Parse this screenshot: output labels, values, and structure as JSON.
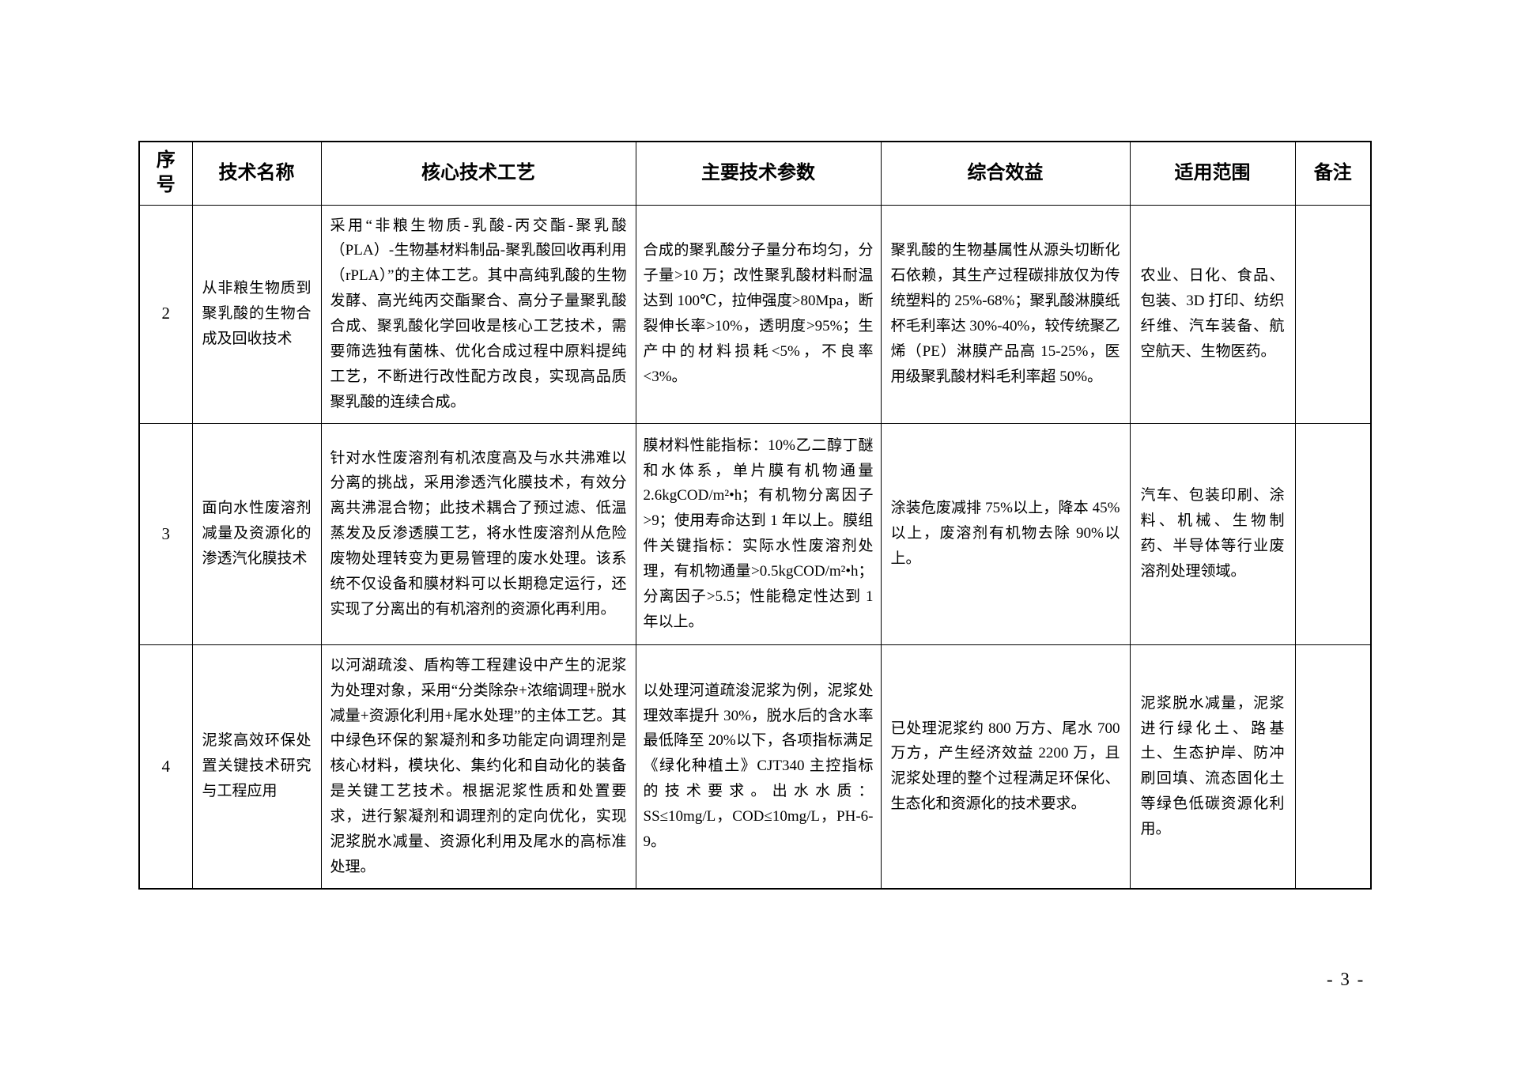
{
  "page": {
    "number_label": "- 3 -"
  },
  "table": {
    "headers": [
      "序\n号",
      "技术名称",
      "核心技术工艺",
      "主要技术参数",
      "综合效益",
      "适用范围",
      "备注"
    ],
    "rows": [
      {
        "no": "2",
        "name": "从非粮生物质到聚乳酸的生物合成及回收技术",
        "process": "采用“非粮生物质-乳酸-丙交酯-聚乳酸（PLA）-生物基材料制品-聚乳酸回收再利用（rPLA）”的主体工艺。其中高纯乳酸的生物发酵、高光纯丙交酯聚合、高分子量聚乳酸合成、聚乳酸化学回收是核心工艺技术，需要筛选独有菌株、优化合成过程中原料提纯工艺，不断进行改性配方改良，实现高品质聚乳酸的连续合成。",
        "params": "合成的聚乳酸分子量分布均匀，分子量>10 万；改性聚乳酸材料耐温达到 100℃，拉伸强度>80Mpa，断裂伸长率>10%，透明度>95%；生产中的材料损耗<5%，不良率<3%。",
        "benefits": "聚乳酸的生物基属性从源头切断化石依赖，其生产过程碳排放仅为传统塑料的 25%-68%；聚乳酸淋膜纸杯毛利率达 30%-40%，较传统聚乙烯（PE）淋膜产品高 15-25%，医用级聚乳酸材料毛利率超 50%。",
        "scope": "农业、日化、食品、包装、3D 打印、纺织纤维、汽车装备、航空航天、生物医药。",
        "remark": ""
      },
      {
        "no": "3",
        "name": "面向水性废溶剂减量及资源化的渗透汽化膜技术",
        "process": "针对水性废溶剂有机浓度高及与水共沸难以分离的挑战，采用渗透汽化膜技术，有效分离共沸混合物；此技术耦合了预过滤、低温蒸发及反渗透膜工艺，将水性废溶剂从危险废物处理转变为更易管理的废水处理。该系统不仅设备和膜材料可以长期稳定运行，还实现了分离出的有机溶剂的资源化再利用。",
        "params": "膜材料性能指标：10%乙二醇丁醚和水体系，单片膜有机物通量 2.6kgCOD/m²•h；有机物分离因子>9；使用寿命达到 1 年以上。膜组件关键指标：实际水性废溶剂处理，有机物通量>0.5kgCOD/m²•h；分离因子>5.5；性能稳定性达到 1 年以上。",
        "benefits": "涂装危废减排 75%以上，降本 45%以上，废溶剂有机物去除 90%以上。",
        "scope": "汽车、包装印刷、涂料、机械、生物制药、半导体等行业废溶剂处理领域。",
        "remark": ""
      },
      {
        "no": "4",
        "name": "泥浆高效环保处置关键技术研究与工程应用",
        "process": "以河湖疏浚、盾构等工程建设中产生的泥浆为处理对象，采用“分类除杂+浓缩调理+脱水减量+资源化利用+尾水处理”的主体工艺。其中绿色环保的絮凝剂和多功能定向调理剂是核心材料，模块化、集约化和自动化的装备是关键工艺技术。根据泥浆性质和处置要求，进行絮凝剂和调理剂的定向优化，实现泥浆脱水减量、资源化利用及尾水的高标准处理。",
        "params": "以处理河道疏浚泥浆为例，泥浆处理效率提升 30%，脱水后的含水率最低降至 20%以下，各项指标满足《绿化种植土》CJT340 主控指标的技术要求。出水水质：SS≤10mg/L，COD≤10mg/L，PH-6-9。",
        "benefits": "已处理泥浆约 800 万方、尾水 700 万方，产生经济效益 2200 万，且泥浆处理的整个过程满足环保化、生态化和资源化的技术要求。",
        "scope": "泥浆脱水减量，泥浆进行绿化土、路基土、生态护岸、防冲刷回填、流态固化土等绿色低碳资源化利用。",
        "remark": ""
      }
    ]
  }
}
